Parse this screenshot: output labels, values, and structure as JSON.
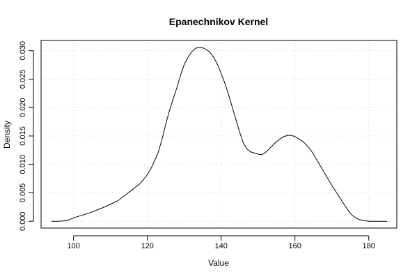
{
  "chart_data": {
    "type": "line",
    "title": "Epanechnikov Kernel",
    "xlabel": "Value",
    "ylabel": "Density",
    "xlim": [
      91.2,
      187.6
    ],
    "ylim": [
      -0.0012,
      0.0318
    ],
    "grid": true,
    "x_ticks": [
      100,
      120,
      140,
      160,
      180
    ],
    "x_tick_labels": [
      "100",
      "120",
      "140",
      "160",
      "180"
    ],
    "y_ticks": [
      0.0,
      0.005,
      0.01,
      0.015,
      0.02,
      0.025,
      0.03
    ],
    "y_tick_labels": [
      "0.000",
      "0.005",
      "0.010",
      "0.015",
      "0.020",
      "0.025",
      "0.030"
    ],
    "series": [
      {
        "x": [
          94,
          96,
          98,
          99,
          100,
          102,
          104,
          106,
          108,
          110,
          112,
          114,
          116,
          118,
          120,
          121,
          122,
          123,
          124,
          125,
          126,
          127,
          128,
          129,
          130,
          131,
          132,
          133,
          134,
          135,
          136,
          137,
          138,
          139,
          140,
          141,
          142,
          143,
          144,
          145,
          146,
          147,
          148,
          149,
          150,
          151,
          152,
          153,
          154,
          155,
          156,
          157,
          158,
          159,
          160,
          161,
          162,
          163,
          164,
          165,
          166,
          167,
          168,
          170,
          172,
          174,
          175,
          176,
          177,
          178,
          179,
          180,
          182,
          184,
          185
        ],
        "values": [
          0.0,
          0.0,
          0.0001,
          0.0003,
          0.0006,
          0.001,
          0.0014,
          0.0019,
          0.0024,
          0.003,
          0.0036,
          0.0046,
          0.0056,
          0.0066,
          0.0082,
          0.0093,
          0.0107,
          0.0122,
          0.0145,
          0.0171,
          0.0195,
          0.0215,
          0.0235,
          0.0257,
          0.0276,
          0.0288,
          0.0298,
          0.0304,
          0.0306,
          0.0305,
          0.0302,
          0.0297,
          0.0288,
          0.0276,
          0.026,
          0.0243,
          0.0223,
          0.0201,
          0.0179,
          0.0157,
          0.0138,
          0.0127,
          0.0122,
          0.012,
          0.0118,
          0.0117,
          0.0121,
          0.0127,
          0.0134,
          0.014,
          0.0145,
          0.0149,
          0.0151,
          0.0151,
          0.0149,
          0.0145,
          0.0141,
          0.0135,
          0.0128,
          0.0118,
          0.0107,
          0.0096,
          0.0085,
          0.0063,
          0.0043,
          0.0023,
          0.0014,
          0.0008,
          0.0004,
          0.0002,
          0.0001,
          0.0,
          0.0,
          0.0,
          0.0
        ]
      }
    ]
  }
}
